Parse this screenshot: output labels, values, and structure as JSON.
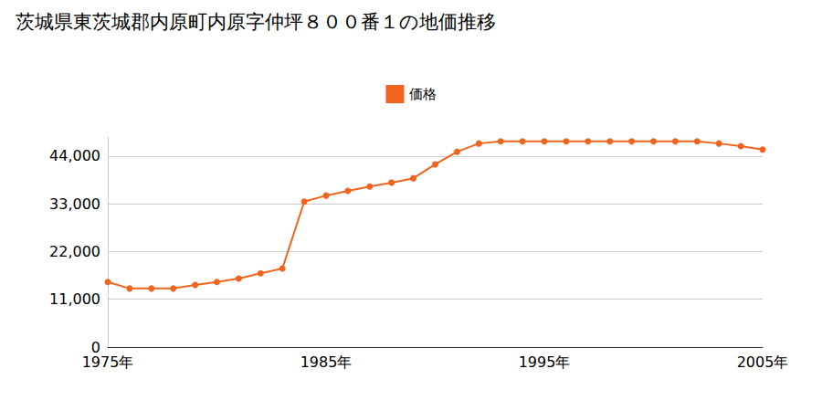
{
  "chart_data": {
    "type": "line",
    "title": "茨城県東茨城郡内原町内原字仲坪８００番１の地価推移",
    "categories": [
      "1975年",
      null,
      null,
      null,
      null,
      null,
      null,
      null,
      null,
      null,
      "1985年",
      null,
      null,
      null,
      null,
      null,
      null,
      null,
      null,
      null,
      "1995年",
      null,
      null,
      null,
      null,
      null,
      null,
      null,
      null,
      null,
      "2005年"
    ],
    "series": [
      {
        "name": "価格",
        "color": "#f0641e",
        "marker": "circle",
        "values": [
          15000,
          13500,
          13500,
          13500,
          14300,
          15000,
          15800,
          17000,
          18100,
          33500,
          34900,
          36000,
          37000,
          37900,
          38900,
          42100,
          45000,
          46900,
          47400,
          47400,
          47400,
          47400,
          47400,
          47400,
          47400,
          47400,
          47400,
          47400,
          46900,
          46300,
          45500
        ]
      }
    ],
    "ylim": [
      0,
      48400
    ],
    "yticks": [
      0,
      {
        "value": 11000,
        "label": "11,000"
      },
      {
        "value": 22000,
        "label": "22,000"
      },
      {
        "value": 33000,
        "label": "33,000"
      },
      {
        "value": 44000,
        "label": "44,000"
      }
    ],
    "grid": true,
    "legend": "top"
  }
}
